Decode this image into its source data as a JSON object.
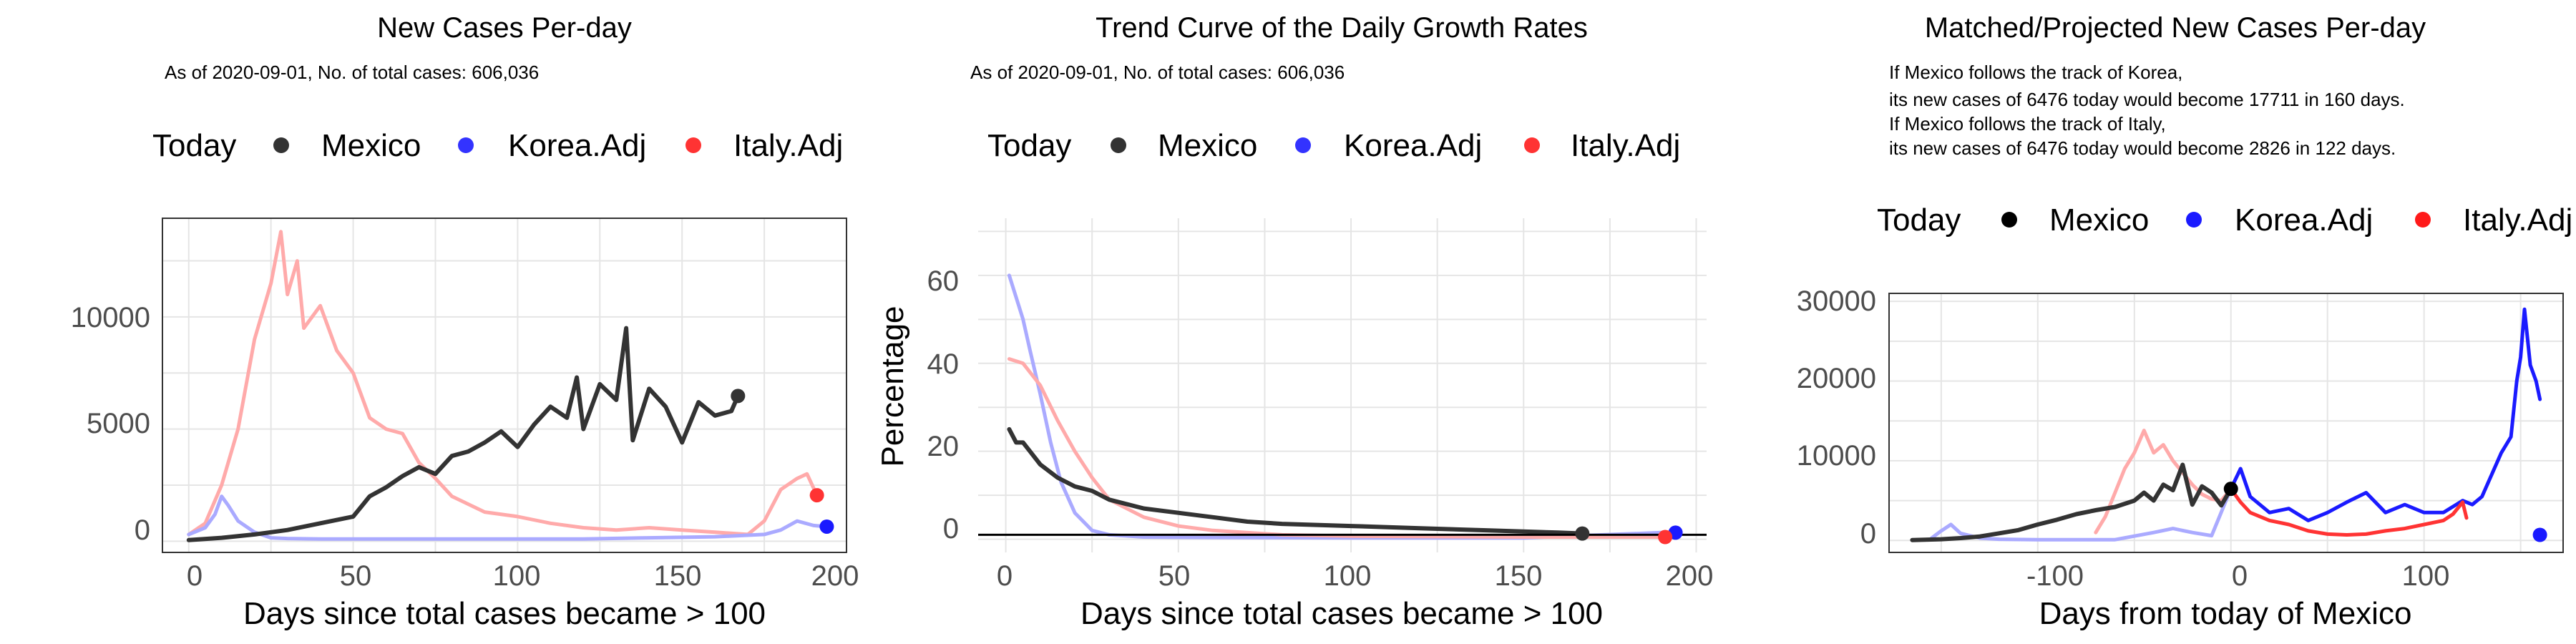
{
  "colors": {
    "mexico": "#333333",
    "korea": "#1a1aff",
    "korea_light": "#aaaaff",
    "italy": "#ff3333",
    "italy_light": "#ffaaaa",
    "grid": "#e5e5e5"
  },
  "legend": {
    "today_label": "Today",
    "mexico_label": "Mexico",
    "korea_label": "Korea.Adj",
    "italy_label": "Italy.Adj"
  },
  "panel1": {
    "title": "New Cases Per-day",
    "subtitle": "As of 2020-09-01, No. of total cases: 606,036",
    "xlabel": "Days since total cases became > 100",
    "x_ticks": [
      "0",
      "50",
      "100",
      "150",
      "200"
    ],
    "y_ticks": [
      "0",
      "5000",
      "10000"
    ]
  },
  "panel2": {
    "title": "Trend Curve of the Daily Growth Rates",
    "subtitle": "As of 2020-09-01, No. of total cases: 606,036",
    "xlabel": "Days since total cases became > 100",
    "ylabel": "Percentage",
    "x_ticks": [
      "0",
      "50",
      "100",
      "150",
      "200"
    ],
    "y_ticks": [
      "0",
      "20",
      "40",
      "60"
    ]
  },
  "panel3": {
    "title": "Matched/Projected New Cases Per-day",
    "note_lines": [
      "If Mexico follows the track of Korea,",
      "its new cases of 6476 today would become 17711 in 160 days.",
      "If Mexico follows the track of Italy,",
      "its new cases of 6476 today would become 2826 in 122 days."
    ],
    "xlabel": "Days from today of Mexico",
    "x_ticks": [
      "-100",
      "0",
      "100"
    ],
    "y_ticks": [
      "0",
      "10000",
      "20000",
      "30000"
    ]
  },
  "chart_data": [
    {
      "type": "line",
      "title": "New Cases Per-day",
      "xlabel": "Days since total cases became > 100",
      "ylabel": "",
      "xlim": [
        -8,
        200
      ],
      "ylim": [
        -500,
        14400
      ],
      "series": [
        {
          "name": "Mexico",
          "x": [
            0,
            10,
            20,
            30,
            40,
            50,
            55,
            60,
            65,
            70,
            75,
            80,
            85,
            90,
            95,
            100,
            105,
            110,
            115,
            118,
            120,
            125,
            130,
            133,
            135,
            140,
            145,
            150,
            155,
            160,
            165,
            167
          ],
          "y": [
            50,
            150,
            300,
            500,
            800,
            1100,
            2000,
            2400,
            2900,
            3300,
            3000,
            3800,
            4000,
            4400,
            4900,
            4200,
            5200,
            6000,
            5500,
            7300,
            5000,
            7000,
            6300,
            9500,
            4500,
            6800,
            6000,
            4400,
            6200,
            5600,
            5800,
            6476
          ]
        },
        {
          "name": "Korea.Adj",
          "x": [
            0,
            5,
            8,
            10,
            12,
            15,
            20,
            25,
            30,
            40,
            60,
            80,
            100,
            120,
            140,
            160,
            175,
            180,
            185,
            190,
            194
          ],
          "y": [
            300,
            600,
            1200,
            2000,
            1600,
            900,
            400,
            150,
            120,
            100,
            100,
            100,
            100,
            100,
            150,
            200,
            300,
            500,
            900,
            700,
            650
          ]
        },
        {
          "name": "Italy.Adj",
          "x": [
            0,
            5,
            10,
            15,
            20,
            25,
            28,
            30,
            33,
            35,
            40,
            45,
            50,
            55,
            60,
            65,
            70,
            75,
            80,
            90,
            100,
            110,
            120,
            130,
            140,
            150,
            160,
            170,
            175,
            180,
            185,
            188,
            191
          ],
          "y": [
            300,
            800,
            2500,
            5000,
            9000,
            11500,
            13800,
            11000,
            12500,
            9500,
            10500,
            8500,
            7500,
            5500,
            5000,
            4800,
            3500,
            2800,
            2000,
            1300,
            1100,
            800,
            600,
            500,
            600,
            500,
            400,
            300,
            900,
            2300,
            2800,
            3000,
            2050
          ]
        }
      ],
      "today": [
        {
          "name": "Mexico",
          "x": 167,
          "y": 6476
        },
        {
          "name": "Korea.Adj",
          "x": 194,
          "y": 650
        },
        {
          "name": "Italy.Adj",
          "x": 191,
          "y": 2050
        }
      ]
    },
    {
      "type": "line",
      "title": "Trend Curve of the Daily Growth Rates",
      "xlabel": "Days since total cases became > 100",
      "ylabel": "Percentage",
      "xlim": [
        -8,
        203
      ],
      "ylim": [
        -3,
        73
      ],
      "series": [
        {
          "name": "Mexico",
          "x": [
            1,
            3,
            5,
            7,
            10,
            15,
            20,
            25,
            30,
            40,
            50,
            60,
            70,
            80,
            100,
            120,
            140,
            160,
            167
          ],
          "y": [
            25,
            22,
            22,
            20,
            17,
            14,
            12,
            11,
            9,
            7,
            6,
            5,
            4,
            3.5,
            3,
            2.5,
            2,
            1.5,
            1.3
          ]
        },
        {
          "name": "Korea.Adj",
          "x": [
            1,
            3,
            5,
            7,
            10,
            13,
            16,
            20,
            25,
            30,
            40,
            60,
            100,
            150,
            190,
            194
          ],
          "y": [
            60,
            55,
            50,
            43,
            33,
            22,
            13,
            6,
            2,
            1,
            0.5,
            0.4,
            0.3,
            0.3,
            1.5,
            1.5
          ]
        },
        {
          "name": "Italy.Adj",
          "x": [
            1,
            5,
            10,
            15,
            20,
            25,
            30,
            40,
            50,
            60,
            80,
            100,
            150,
            190,
            191
          ],
          "y": [
            41,
            40,
            35,
            27,
            20,
            14,
            9,
            5,
            3,
            2,
            1,
            0.7,
            0.5,
            0.5,
            0.5
          ]
        }
      ],
      "reference_line_y": 1,
      "today": [
        {
          "name": "Mexico",
          "x": 167,
          "y": 1.3
        },
        {
          "name": "Korea.Adj",
          "x": 194,
          "y": 1.5
        },
        {
          "name": "Italy.Adj",
          "x": 191,
          "y": 0.5
        }
      ]
    },
    {
      "type": "line",
      "title": "Matched/Projected New Cases Per-day",
      "xlabel": "Days from today of Mexico",
      "ylabel": "",
      "xlim": [
        -177,
        172
      ],
      "ylim": [
        -1500,
        31000
      ],
      "series": [
        {
          "name": "Mexico",
          "x": [
            -165,
            -150,
            -140,
            -130,
            -120,
            -110,
            -100,
            -90,
            -80,
            -70,
            -60,
            -50,
            -45,
            -40,
            -35,
            -30,
            -25,
            -20,
            -15,
            -10,
            -5,
            0
          ],
          "y": [
            50,
            150,
            300,
            500,
            900,
            1300,
            2000,
            2600,
            3300,
            3800,
            4200,
            5000,
            6000,
            5000,
            7000,
            6300,
            9500,
            4500,
            6800,
            6000,
            4400,
            6476
          ]
        },
        {
          "name": "Korea.Adj (matched)",
          "x": [
            -155,
            -150,
            -145,
            -140,
            -130,
            -120,
            -100,
            -80,
            -60,
            -40,
            -30,
            -20,
            -10,
            0
          ],
          "y": [
            300,
            1200,
            2000,
            900,
            300,
            150,
            100,
            100,
            100,
            1000,
            1500,
            1000,
            600,
            6476
          ]
        },
        {
          "name": "Korea.Adj (projected)",
          "x": [
            0,
            5,
            10,
            20,
            30,
            40,
            50,
            60,
            70,
            80,
            90,
            100,
            110,
            120,
            125,
            130,
            140,
            145,
            148,
            150,
            152,
            155,
            158,
            160
          ],
          "y": [
            6476,
            9000,
            5500,
            3500,
            4000,
            2500,
            3500,
            4800,
            6000,
            3500,
            4500,
            3500,
            3500,
            5000,
            4500,
            5500,
            11000,
            13000,
            20000,
            23000,
            29000,
            22000,
            20000,
            17711
          ]
        },
        {
          "name": "Italy.Adj (matched)",
          "x": [
            -70,
            -65,
            -60,
            -55,
            -50,
            -45,
            -40,
            -35,
            -30,
            -25,
            -20,
            -15,
            -10,
            -5,
            0
          ],
          "y": [
            1000,
            3000,
            6000,
            9000,
            11000,
            13800,
            11000,
            12000,
            10000,
            8500,
            7000,
            5800,
            5200,
            5000,
            6476
          ]
        },
        {
          "name": "Italy.Adj (projected)",
          "x": [
            0,
            5,
            10,
            20,
            30,
            40,
            50,
            60,
            70,
            80,
            90,
            100,
            110,
            115,
            120,
            122
          ],
          "y": [
            6476,
            4800,
            3500,
            2500,
            2000,
            1200,
            800,
            700,
            800,
            1200,
            1500,
            2000,
            2500,
            3300,
            4800,
            2826
          ]
        }
      ],
      "today": [
        {
          "name": "Mexico",
          "x": 0,
          "y": 6476
        },
        {
          "name": "Korea.Adj",
          "x": 160,
          "y": 700
        }
      ]
    }
  ]
}
